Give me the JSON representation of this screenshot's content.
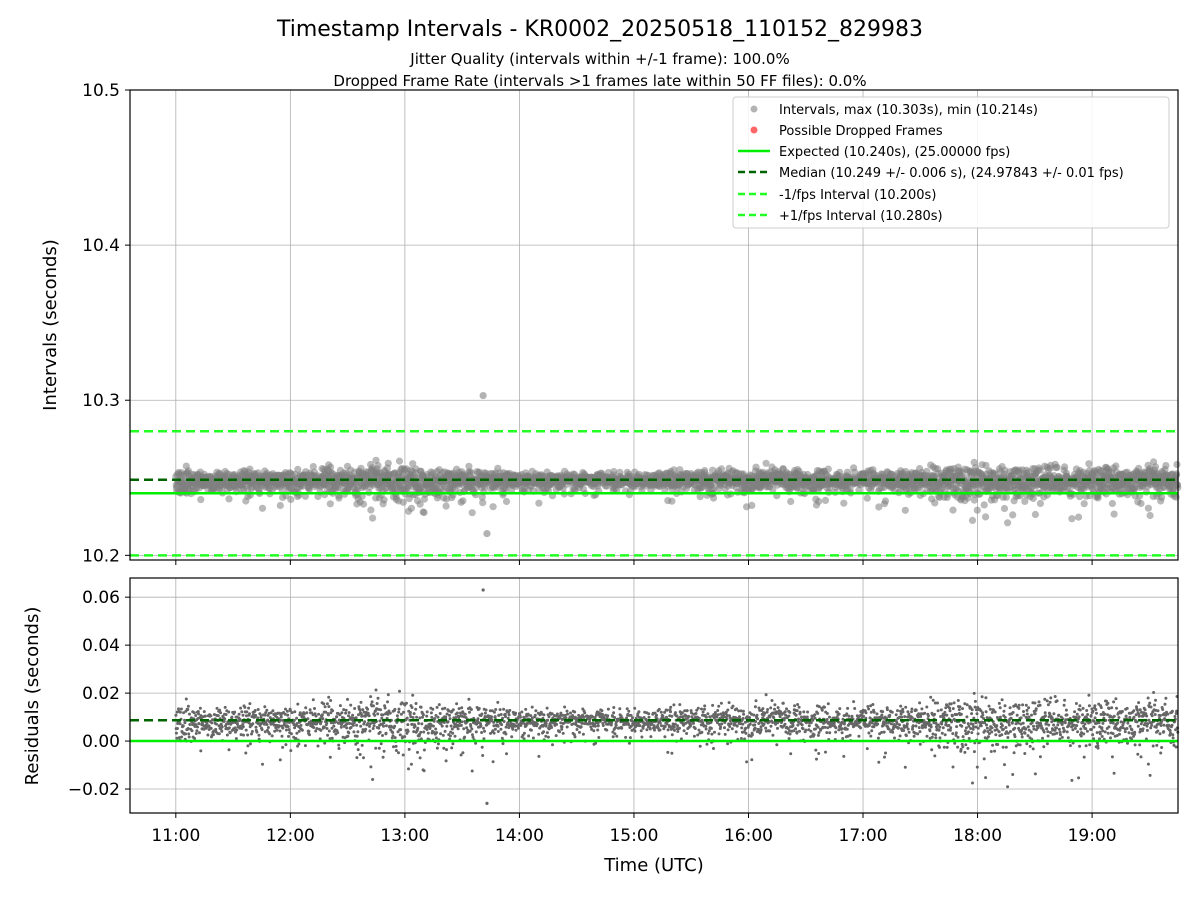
{
  "figure": {
    "title": "Timestamp Intervals - KR0002_20250518_110152_829983",
    "subtitle_1": "Jitter Quality (intervals within +/-1 frame): 100.0%",
    "subtitle_2": "Dropped Frame Rate (intervals >1 frames late within 50 FF files): 0.0%",
    "xlabel": "Time (UTC)"
  },
  "colors": {
    "points": "#808080",
    "dropped": "#ff0000",
    "expected": "#00ee00",
    "median": "#006400",
    "bounds": "#22ff22",
    "grid": "#b0b0b0"
  },
  "chart_data": [
    {
      "type": "scatter",
      "ylabel": "Intervals (seconds)",
      "xlim": [
        "10:36",
        "19:45"
      ],
      "ylim": [
        10.197,
        10.5
      ],
      "x_ticks": [
        "11:00",
        "12:00",
        "13:00",
        "14:00",
        "15:00",
        "16:00",
        "17:00",
        "18:00",
        "19:00"
      ],
      "y_ticks": [
        "10.2",
        "10.3",
        "10.4",
        "10.5"
      ],
      "grid": true,
      "legend_position": "top-right",
      "legend": [
        {
          "label": "Intervals, max (10.303s), min (10.214s)",
          "kind": "marker-gray"
        },
        {
          "label": "Possible Dropped Frames",
          "kind": "marker-red"
        },
        {
          "label": "Expected (10.240s), (25.00000 fps)",
          "kind": "line-expected"
        },
        {
          "label": "Median (10.249 +/- 0.006 s), (24.97843 +/- 0.01 fps)",
          "kind": "line-median"
        },
        {
          "label": "-1/fps Interval (10.200s)",
          "kind": "line-bound"
        },
        {
          "label": "+1/fps Interval (10.280s)",
          "kind": "line-bound"
        }
      ],
      "reference_lines": {
        "expected": 10.24,
        "median": 10.2487,
        "minus_1_fps": 10.2,
        "plus_1_fps": 10.28
      },
      "max_point": {
        "x": "13:41",
        "y": 10.303
      },
      "min_point": {
        "x": "13:43",
        "y": 10.214
      },
      "series_summary": [
        {
          "x": "11:00",
          "y_median": 10.249,
          "y_spread": 0.006
        },
        {
          "x": "12:00",
          "y_median": 10.249,
          "y_spread": 0.005
        },
        {
          "x": "13:00",
          "y_median": 10.249,
          "y_spread": 0.01
        },
        {
          "x": "14:00",
          "y_median": 10.248,
          "y_spread": 0.004
        },
        {
          "x": "15:00",
          "y_median": 10.249,
          "y_spread": 0.004
        },
        {
          "x": "16:00",
          "y_median": 10.249,
          "y_spread": 0.006
        },
        {
          "x": "17:00",
          "y_median": 10.249,
          "y_spread": 0.005
        },
        {
          "x": "18:00",
          "y_median": 10.249,
          "y_spread": 0.008
        },
        {
          "x": "19:00",
          "y_median": 10.249,
          "y_spread": 0.008
        }
      ]
    },
    {
      "type": "scatter",
      "ylabel": "Residuals (seconds)",
      "xlim": [
        "10:36",
        "19:45"
      ],
      "ylim": [
        -0.03,
        0.068
      ],
      "x_ticks": [
        "11:00",
        "12:00",
        "13:00",
        "14:00",
        "15:00",
        "16:00",
        "17:00",
        "18:00",
        "19:00"
      ],
      "y_ticks": [
        "0.06",
        "0.04",
        "0.02",
        "0.00",
        "−0.02"
      ],
      "grid": true,
      "reference_lines": {
        "zero": 0.0,
        "median": 0.0087
      },
      "max_point": {
        "x": "13:41",
        "y": 0.063
      },
      "min_point": {
        "x": "13:43",
        "y": -0.026
      }
    }
  ]
}
